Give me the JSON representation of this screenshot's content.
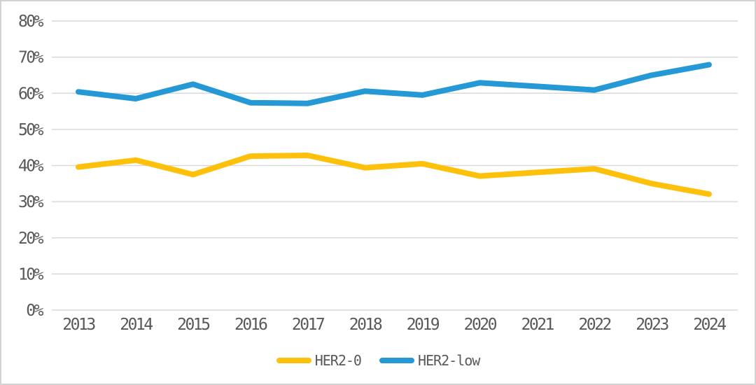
{
  "chart_data": {
    "type": "line",
    "title": "",
    "xlabel": "",
    "ylabel": "",
    "categories": [
      "2013",
      "2014",
      "2015",
      "2016",
      "2017",
      "2018",
      "2019",
      "2020",
      "2021",
      "2022",
      "2023",
      "2024"
    ],
    "series": [
      {
        "name": "HER2-0",
        "color": "#FEC10B",
        "values": [
          39.6,
          41.5,
          37.5,
          42.6,
          42.8,
          39.4,
          40.5,
          37.1,
          38.1,
          39.1,
          35.0,
          32.1
        ]
      },
      {
        "name": "HER2-low",
        "color": "#2499D6",
        "values": [
          60.4,
          58.5,
          62.5,
          57.4,
          57.2,
          60.6,
          59.5,
          62.9,
          61.9,
          60.9,
          65.0,
          67.9
        ]
      }
    ],
    "y_axis": {
      "min": 0,
      "max": 80,
      "step": 10,
      "tick_labels": [
        "0%",
        "10%",
        "20%",
        "30%",
        "40%",
        "50%",
        "60%",
        "70%",
        "80%"
      ]
    },
    "grid": "horizontal",
    "legend_position": "bottom"
  },
  "colors": {
    "background": "#ffffff",
    "border": "#d2d2d2",
    "gridline": "#d9d9d9",
    "text": "#595959"
  }
}
